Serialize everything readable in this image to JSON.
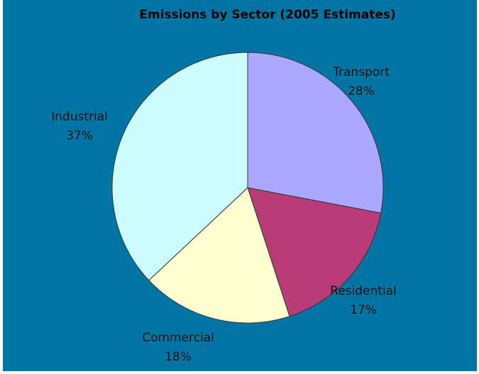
{
  "chart_data": {
    "type": "pie",
    "title": "Emissions by Sector (2005 Estimates)",
    "slices": [
      {
        "label": "Transport",
        "value": 28,
        "value_label": "28%",
        "color": "#aaa8ff"
      },
      {
        "label": "Residential",
        "value": 17,
        "value_label": "17%",
        "color": "#b83c78"
      },
      {
        "label": "Commercial",
        "value": 18,
        "value_label": "18%",
        "color": "#ffffd2"
      },
      {
        "label": "Industrial",
        "value": 37,
        "value_label": "37%",
        "color": "#ccfcff"
      }
    ],
    "start_angle": "12 o'clock",
    "direction": "clockwise",
    "legend": "none",
    "background_color": "#0176a5"
  }
}
